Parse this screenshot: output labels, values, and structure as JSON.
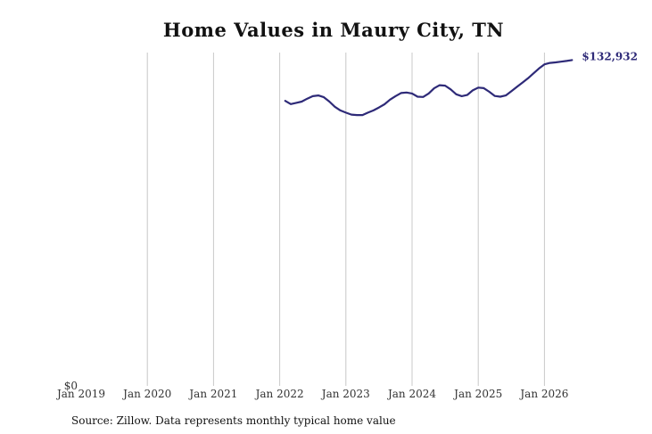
{
  "chart_data": {
    "type": "line",
    "title": "Home Values in Maury City, TN",
    "source": "Source: Zillow. Data represents monthly typical home value",
    "xlabel": "",
    "ylabel": "",
    "x_ticks": [
      "Jan 2019",
      "Jan 2020",
      "Jan 2021",
      "Jan 2022",
      "Jan 2023",
      "Jan 2024",
      "Jan 2025",
      "Jan 2026"
    ],
    "y_ticks": [
      {
        "value": 0,
        "label": "$0"
      }
    ],
    "xlim": [
      "2019-01",
      "2026-09"
    ],
    "ylim": [
      0,
      136000
    ],
    "grid": "vertical",
    "end_label": "$132,932",
    "colors": {
      "line": "#2e2a78",
      "grid": "#c8c8c8"
    },
    "series": [
      {
        "values": [
          [
            "2022-02",
            116300
          ],
          [
            "2022-03",
            115000
          ],
          [
            "2022-04",
            115500
          ],
          [
            "2022-05",
            116000
          ],
          [
            "2022-06",
            117200
          ],
          [
            "2022-07",
            118200
          ],
          [
            "2022-08",
            118500
          ],
          [
            "2022-09",
            117800
          ],
          [
            "2022-10",
            116000
          ],
          [
            "2022-11",
            113900
          ],
          [
            "2022-12",
            112400
          ],
          [
            "2023-01",
            111500
          ],
          [
            "2023-02",
            110700
          ],
          [
            "2023-03",
            110500
          ],
          [
            "2023-04",
            110500
          ],
          [
            "2023-05",
            111500
          ],
          [
            "2023-06",
            112400
          ],
          [
            "2023-07",
            113600
          ],
          [
            "2023-08",
            114900
          ],
          [
            "2023-09",
            116800
          ],
          [
            "2023-10",
            118200
          ],
          [
            "2023-11",
            119500
          ],
          [
            "2023-12",
            119700
          ],
          [
            "2024-01",
            119300
          ],
          [
            "2024-02",
            118000
          ],
          [
            "2024-03",
            117900
          ],
          [
            "2024-04",
            119300
          ],
          [
            "2024-05",
            121400
          ],
          [
            "2024-06",
            122700
          ],
          [
            "2024-07",
            122500
          ],
          [
            "2024-08",
            121000
          ],
          [
            "2024-09",
            119000
          ],
          [
            "2024-10",
            118200
          ],
          [
            "2024-11",
            118700
          ],
          [
            "2024-12",
            120600
          ],
          [
            "2025-01",
            121700
          ],
          [
            "2025-02",
            121500
          ],
          [
            "2025-03",
            120000
          ],
          [
            "2025-04",
            118300
          ],
          [
            "2025-05",
            118000
          ],
          [
            "2025-06",
            118500
          ],
          [
            "2025-07",
            120200
          ],
          [
            "2025-08",
            122000
          ],
          [
            "2025-09",
            123700
          ],
          [
            "2025-10",
            125500
          ],
          [
            "2025-11",
            127500
          ],
          [
            "2025-12",
            129500
          ],
          [
            "2026-01",
            131200
          ],
          [
            "2026-02",
            131800
          ],
          [
            "2026-03",
            132000
          ],
          [
            "2026-04",
            132300
          ],
          [
            "2026-05",
            132600
          ],
          [
            "2026-06",
            132932
          ]
        ]
      }
    ]
  }
}
